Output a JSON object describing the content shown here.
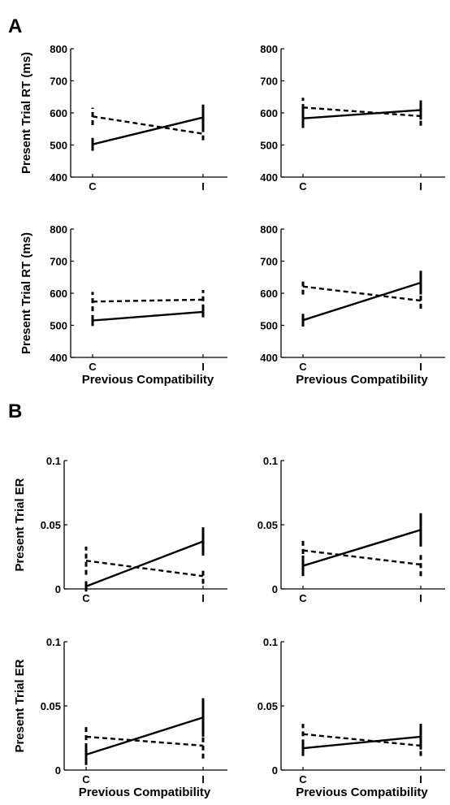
{
  "figure": {
    "panels": [
      {
        "letter": "A"
      },
      {
        "letter": "B"
      }
    ]
  },
  "chart_data": [
    {
      "type": "line",
      "panel": "A",
      "position": "top-left",
      "x": [
        "C",
        "I"
      ],
      "xlabel": "",
      "ylabel": "Present Trial RT (ms)",
      "ylim": [
        400,
        800
      ],
      "yticks": [
        "400",
        "500",
        "600",
        "700",
        "800"
      ],
      "series": [
        {
          "style": "solid",
          "values": [
            502,
            586
          ],
          "errors": [
            20,
            40
          ]
        },
        {
          "style": "dashed",
          "values": [
            589,
            535
          ],
          "errors": [
            27,
            20
          ]
        }
      ]
    },
    {
      "type": "line",
      "panel": "A",
      "position": "top-right",
      "x": [
        "C",
        "I"
      ],
      "xlabel": "",
      "ylabel": "",
      "ylim": [
        400,
        800
      ],
      "yticks": [
        "400",
        "500",
        "600",
        "700",
        "800"
      ],
      "series": [
        {
          "style": "solid",
          "values": [
            583,
            609
          ],
          "errors": [
            30,
            30
          ]
        },
        {
          "style": "dashed",
          "values": [
            617,
            590
          ],
          "errors": [
            30,
            30
          ]
        }
      ]
    },
    {
      "type": "line",
      "panel": "A",
      "position": "bottom-left",
      "x": [
        "C",
        "I"
      ],
      "xlabel": "Previous Compatibility",
      "ylabel": "Present Trial RT (ms)",
      "ylim": [
        400,
        800
      ],
      "yticks": [
        "400",
        "500",
        "600",
        "700",
        "800"
      ],
      "series": [
        {
          "style": "solid",
          "values": [
            515,
            542
          ],
          "errors": [
            17,
            17
          ]
        },
        {
          "style": "dashed",
          "values": [
            574,
            580
          ],
          "errors": [
            30,
            30
          ]
        }
      ]
    },
    {
      "type": "line",
      "panel": "A",
      "position": "bottom-right",
      "x": [
        "C",
        "I"
      ],
      "xlabel": "Previous Compatibility",
      "ylabel": "",
      "ylim": [
        400,
        800
      ],
      "yticks": [
        "400",
        "500",
        "600",
        "700",
        "800"
      ],
      "series": [
        {
          "style": "solid",
          "values": [
            516,
            633
          ],
          "errors": [
            20,
            37
          ]
        },
        {
          "style": "dashed",
          "values": [
            621,
            577
          ],
          "errors": [
            25,
            25
          ]
        }
      ]
    },
    {
      "type": "line",
      "panel": "B",
      "position": "top-left",
      "x": [
        "C",
        "I"
      ],
      "xlabel": "",
      "ylabel": "Present Trial ER",
      "ylim": [
        0,
        0.1
      ],
      "yticks": [
        "0",
        "0.05",
        "0.1"
      ],
      "series": [
        {
          "style": "solid",
          "values": [
            0.002,
            0.037
          ],
          "errors": [
            0.004,
            0.011
          ]
        },
        {
          "style": "dashed",
          "values": [
            0.022,
            0.01
          ],
          "errors": [
            0.011,
            0.006
          ]
        }
      ]
    },
    {
      "type": "line",
      "panel": "B",
      "position": "top-right",
      "x": [
        "C",
        "I"
      ],
      "xlabel": "",
      "ylabel": "",
      "ylim": [
        0,
        0.1
      ],
      "yticks": [
        "0",
        "0.05",
        "0.1"
      ],
      "series": [
        {
          "style": "solid",
          "values": [
            0.018,
            0.046
          ],
          "errors": [
            0.008,
            0.013
          ]
        },
        {
          "style": "dashed",
          "values": [
            0.03,
            0.019
          ],
          "errors": [
            0.009,
            0.009
          ]
        }
      ]
    },
    {
      "type": "line",
      "panel": "B",
      "position": "bottom-left",
      "x": [
        "C",
        "I"
      ],
      "xlabel": "Previous Compatibility",
      "ylabel": "Present Trial ER",
      "ylim": [
        0,
        0.1
      ],
      "yticks": [
        "0",
        "0.05",
        "0.1"
      ],
      "series": [
        {
          "style": "solid",
          "values": [
            0.012,
            0.041
          ],
          "errors": [
            0.008,
            0.015
          ]
        },
        {
          "style": "dashed",
          "values": [
            0.026,
            0.019
          ],
          "errors": [
            0.009,
            0.01
          ]
        }
      ]
    },
    {
      "type": "line",
      "panel": "B",
      "position": "bottom-right",
      "x": [
        "C",
        "I"
      ],
      "xlabel": "Previous Compatibility",
      "ylabel": "",
      "ylim": [
        0,
        0.1
      ],
      "yticks": [
        "0",
        "0.05",
        "0.1"
      ],
      "series": [
        {
          "style": "solid",
          "values": [
            0.017,
            0.026
          ],
          "errors": [
            0.006,
            0.01
          ]
        },
        {
          "style": "dashed",
          "values": [
            0.028,
            0.019
          ],
          "errors": [
            0.008,
            0.008
          ]
        }
      ]
    }
  ]
}
